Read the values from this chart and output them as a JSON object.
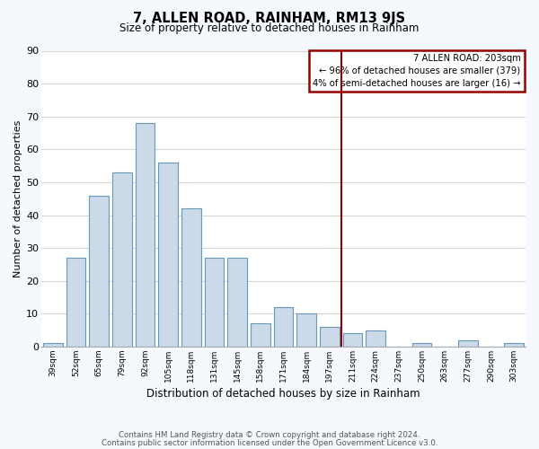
{
  "title": "7, ALLEN ROAD, RAINHAM, RM13 9JS",
  "subtitle": "Size of property relative to detached houses in Rainham",
  "xlabel": "Distribution of detached houses by size in Rainham",
  "ylabel": "Number of detached properties",
  "bar_color": "#ccd9e8",
  "bar_edge_color": "#6699bb",
  "background_color": "#ffffff",
  "fig_background_color": "#f5f8fc",
  "grid_color": "#cccccc",
  "categories": [
    "39sqm",
    "52sqm",
    "65sqm",
    "79sqm",
    "92sqm",
    "105sqm",
    "118sqm",
    "131sqm",
    "145sqm",
    "158sqm",
    "171sqm",
    "184sqm",
    "197sqm",
    "211sqm",
    "224sqm",
    "237sqm",
    "250sqm",
    "263sqm",
    "277sqm",
    "290sqm",
    "303sqm"
  ],
  "values": [
    1,
    27,
    46,
    53,
    68,
    56,
    42,
    27,
    27,
    7,
    12,
    10,
    6,
    4,
    5,
    0,
    1,
    0,
    2,
    0,
    1
  ],
  "vline_color": "#990000",
  "vline_x_index": 12.5,
  "ylim": [
    0,
    90
  ],
  "yticks": [
    0,
    10,
    20,
    30,
    40,
    50,
    60,
    70,
    80,
    90
  ],
  "annotation_title": "7 ALLEN ROAD: 203sqm",
  "annotation_line1": "← 96% of detached houses are smaller (379)",
  "annotation_line2": "4% of semi-detached houses are larger (16) →",
  "annotation_box_color": "#ffffff",
  "annotation_edge_color": "#990000",
  "footer_line1": "Contains HM Land Registry data © Crown copyright and database right 2024.",
  "footer_line2": "Contains public sector information licensed under the Open Government Licence v3.0."
}
